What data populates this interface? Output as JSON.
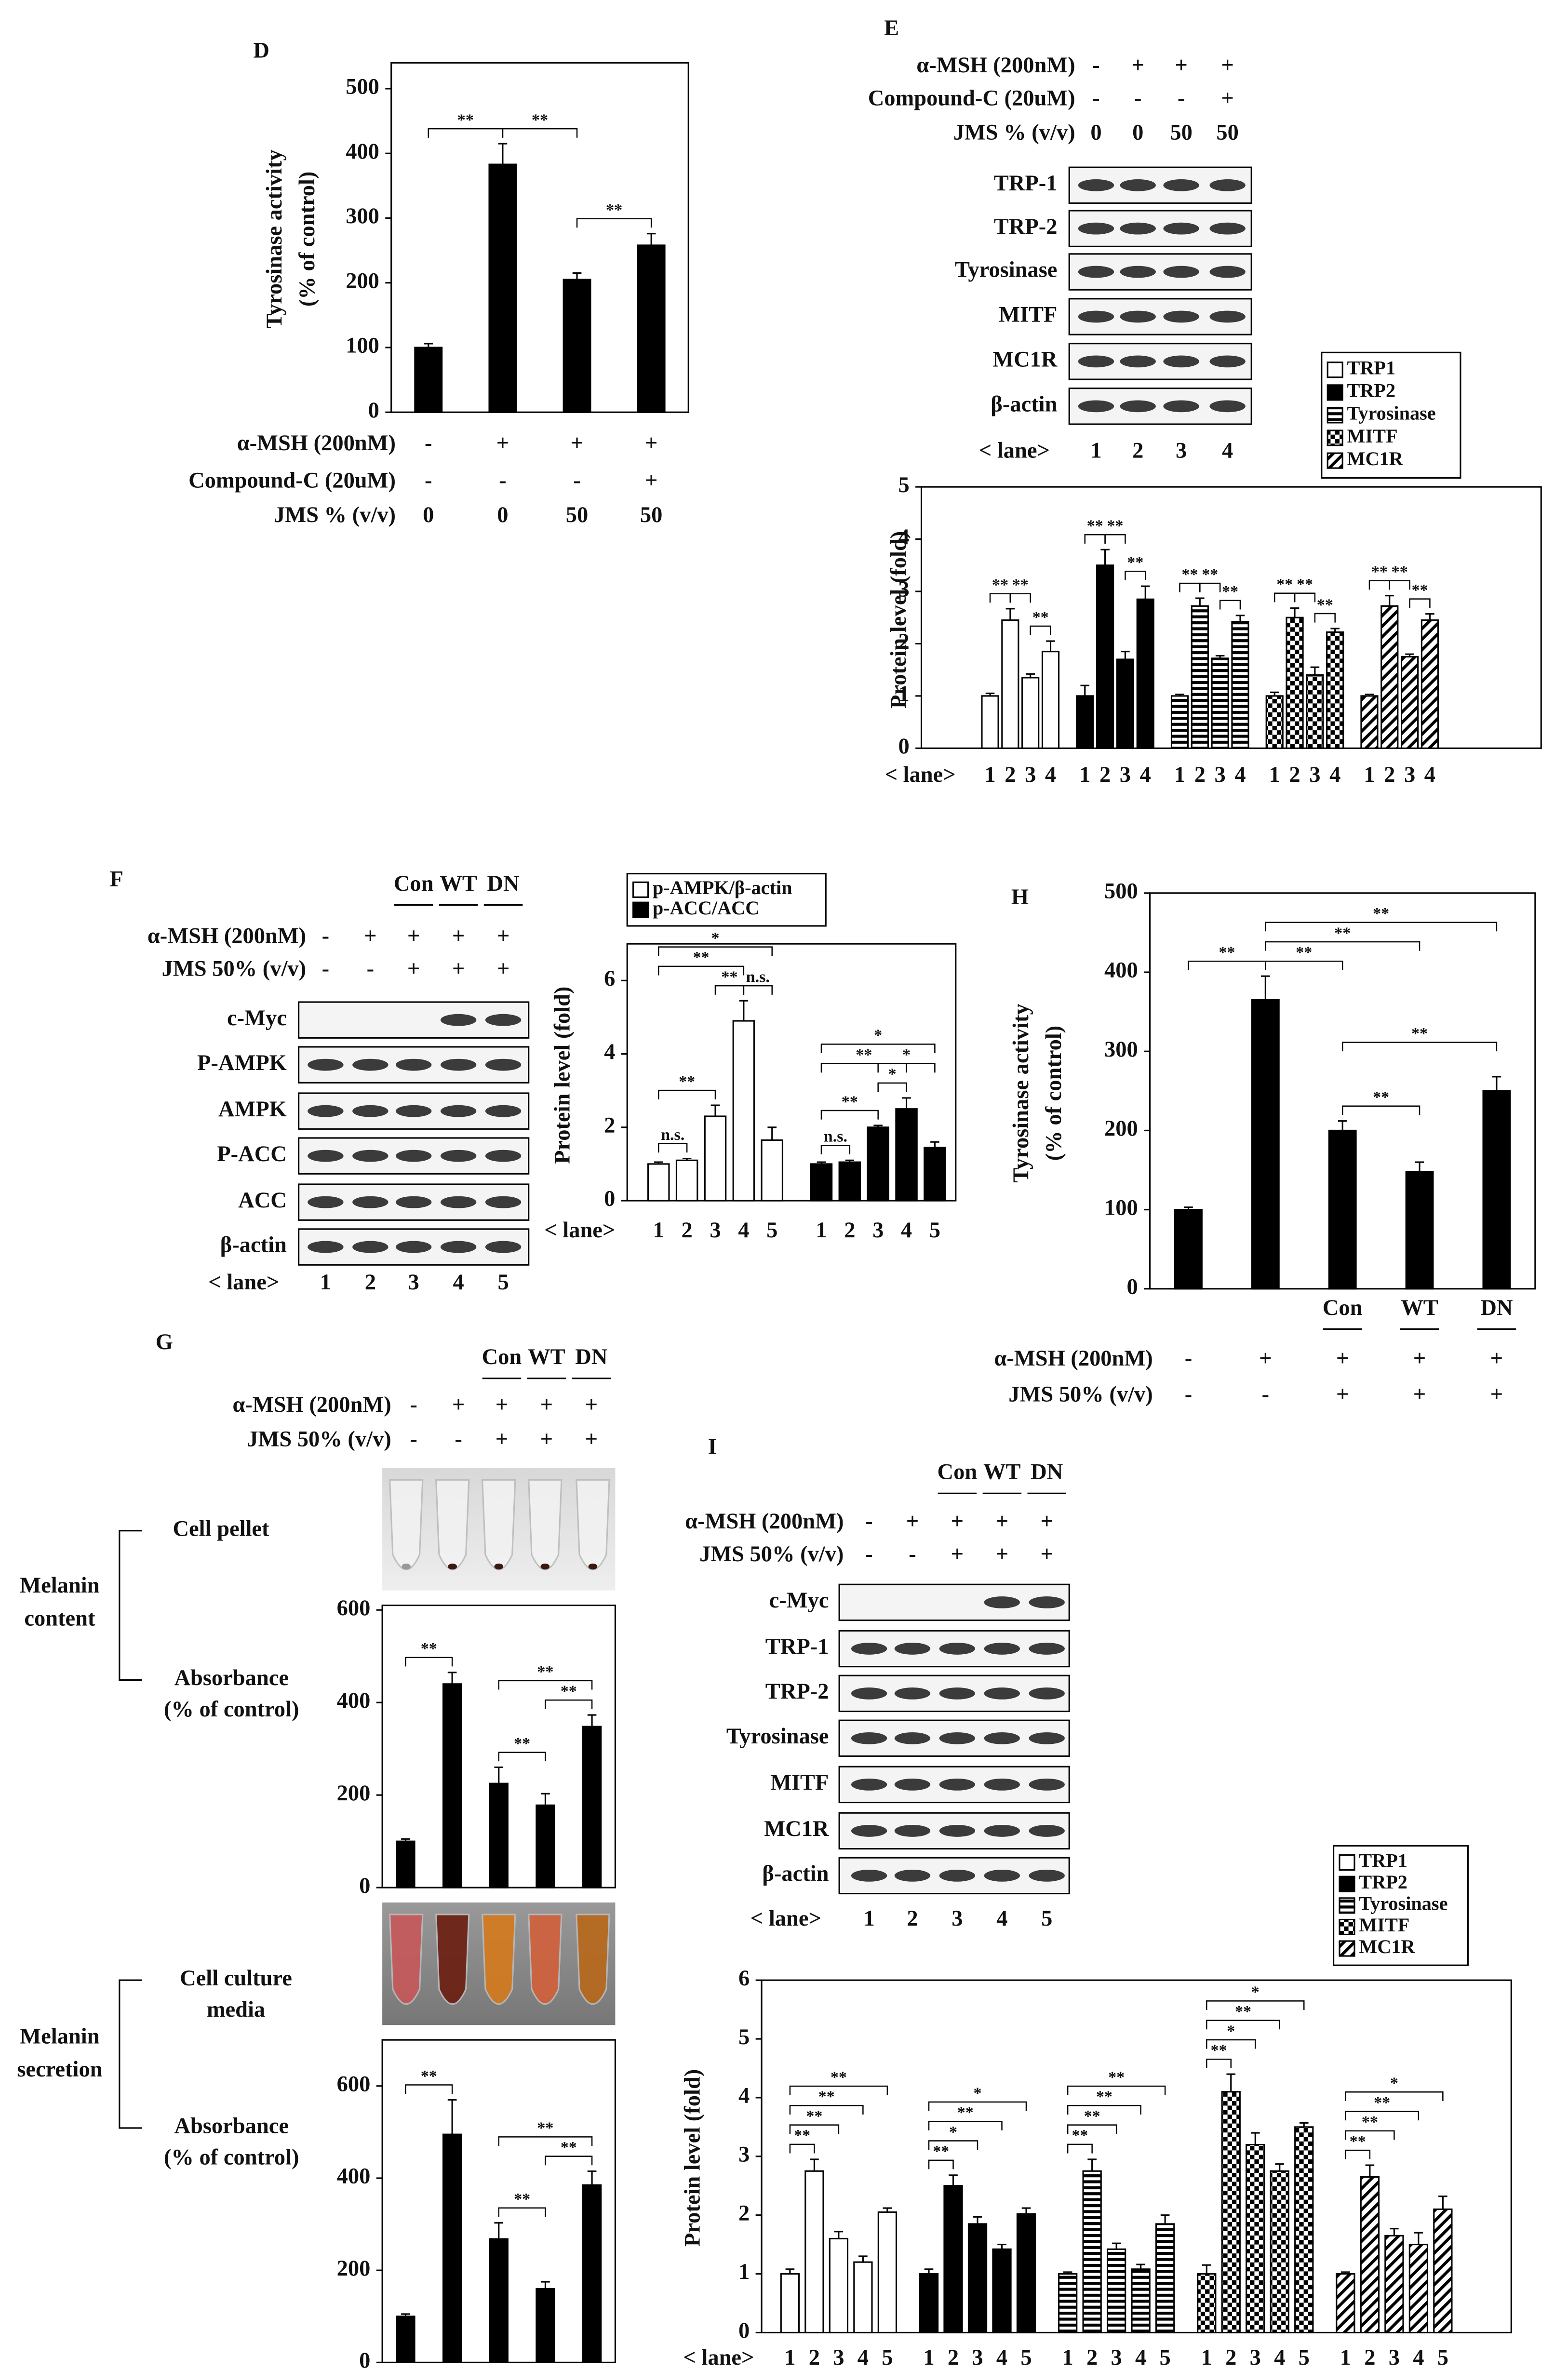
{
  "figure": {
    "panel_labels": [
      "D",
      "E",
      "F",
      "G",
      "H",
      "I"
    ],
    "blots": [
      {
        "conditions": [
          {
            "label": "α-MSH (200nM)",
            "values": [
              "-",
              "+",
              "+",
              "+"
            ]
          },
          {
            "label": "Compound-C (20uM)",
            "values": [
              "-",
              "-",
              "-",
              "+"
            ]
          },
          {
            "label": "JMS % (v/v)",
            "values": [
              "0",
              "0",
              "50",
              "50"
            ]
          }
        ],
        "rows": [
          "TRP-1",
          "TRP-2",
          "Tyrosinase",
          "MITF",
          "MC1R",
          "β-actin"
        ],
        "lane_label": "< lane>",
        "lanes": [
          "1",
          "2",
          "3",
          "4"
        ]
      },
      {
        "constructs": [
          "Con",
          "WT",
          "DN"
        ],
        "conditions": [
          {
            "label": "α-MSH (200nM)",
            "values": [
              "-",
              "+",
              "+",
              "+",
              "+"
            ]
          },
          {
            "label": "JMS 50% (v/v)",
            "values": [
              "-",
              "-",
              "+",
              "+",
              "+"
            ]
          }
        ],
        "rows": [
          "c-Myc",
          "P-AMPK",
          "AMPK",
          "P-ACC",
          "ACC",
          "β-actin"
        ],
        "lane_label": "< lane>",
        "lanes": [
          "1",
          "2",
          "3",
          "4",
          "5"
        ]
      },
      {
        "constructs": [
          "Con",
          "WT",
          "DN"
        ],
        "conditions": [
          {
            "label": "α-MSH (200nM)",
            "values": [
              "-",
              "+",
              "+",
              "+",
              "+"
            ]
          },
          {
            "label": "JMS 50% (v/v)",
            "values": [
              "-",
              "-",
              "+",
              "+",
              "+"
            ]
          }
        ],
        "rows": [
          "c-Myc",
          "TRP-1",
          "TRP-2",
          "Tyrosinase",
          "MITF",
          "MC1R",
          "β-actin"
        ],
        "lane_label": "< lane>",
        "lanes": [
          "1",
          "2",
          "3",
          "4",
          "5"
        ]
      }
    ],
    "melanin": {
      "constructs": [
        "Con",
        "WT",
        "DN"
      ],
      "conditions": [
        {
          "label": "α-MSH (200nM)",
          "values": [
            "-",
            "+",
            "+",
            "+",
            "+"
          ]
        },
        {
          "label": "JMS 50% (v/v)",
          "values": [
            "-",
            "-",
            "+",
            "+",
            "+"
          ]
        }
      ],
      "content_label": [
        "Melanin",
        "content"
      ],
      "pellet_label": "Cell pellet",
      "absorbance_label": [
        "Absorbance",
        "(% of control)"
      ],
      "secretion_label": [
        "Melanin",
        "secretion"
      ],
      "media_label": [
        "Cell culture",
        "media"
      ]
    }
  },
  "chart_data": [
    {
      "type": "bar",
      "y_label": [
        "Tyrosinase activity",
        "(% of control)"
      ],
      "values": [
        100,
        383,
        205,
        258
      ],
      "errors": [
        6,
        32,
        10,
        18
      ],
      "color": "#000000",
      "ylim": [
        0,
        540
      ],
      "yticks": [
        0,
        100,
        200,
        300,
        400,
        500
      ],
      "conditions": [
        {
          "label": "α-MSH (200nM)",
          "values": [
            "-",
            "+",
            "+",
            "+"
          ]
        },
        {
          "label": "Compound-C (20uM)",
          "values": [
            "-",
            "-",
            "-",
            "+"
          ]
        },
        {
          "label": "JMS % (v/v)",
          "values": [
            "0",
            "0",
            "50",
            "50"
          ]
        }
      ],
      "annotations": [
        "**",
        "**",
        "**"
      ]
    },
    {
      "type": "bar",
      "y_label": "Protein level (fold)",
      "lane_label": "< lane>",
      "categories": [
        "1",
        "2",
        "3",
        "4"
      ],
      "series": [
        {
          "name": "TRP1",
          "color": "#ffffff",
          "pattern": "none",
          "values": [
            1,
            2.45,
            1.35,
            1.85
          ],
          "errors": [
            0.05,
            0.22,
            0.07,
            0.2
          ]
        },
        {
          "name": "TRP2",
          "color": "#000000",
          "pattern": "solid",
          "values": [
            1,
            3.5,
            1.7,
            2.85
          ],
          "errors": [
            0.2,
            0.3,
            0.15,
            0.25
          ]
        },
        {
          "name": "Tyrosinase",
          "color": "#ffffff",
          "pattern": "horizontal",
          "values": [
            1,
            2.72,
            1.72,
            2.42
          ],
          "errors": [
            0.03,
            0.15,
            0.05,
            0.12
          ]
        },
        {
          "name": "MITF",
          "color": "#ffffff",
          "pattern": "checker",
          "values": [
            1,
            2.5,
            1.4,
            2.22
          ],
          "errors": [
            0.07,
            0.18,
            0.15,
            0.07
          ]
        },
        {
          "name": "MC1R",
          "color": "#ffffff",
          "pattern": "diagonal",
          "values": [
            1,
            2.72,
            1.75,
            2.45
          ],
          "errors": [
            0.03,
            0.2,
            0.05,
            0.12
          ]
        }
      ],
      "ylim": [
        0,
        5
      ],
      "yticks": [
        0,
        1,
        2,
        3,
        4,
        5
      ],
      "annotations": [
        "**",
        "**",
        "**",
        "**",
        "**",
        "**",
        "**",
        "**",
        "**",
        "**",
        "**",
        "**",
        "**",
        "**",
        "**"
      ]
    },
    {
      "type": "bar",
      "y_label": "Protein level (fold)",
      "lane_label": "< lane>",
      "categories": [
        "1",
        "2",
        "3",
        "4",
        "5"
      ],
      "series": [
        {
          "name": "p-AMPK/β-actin",
          "color": "#ffffff",
          "pattern": "none",
          "values": [
            1,
            1.1,
            2.3,
            4.9,
            1.65
          ],
          "errors": [
            0.05,
            0.05,
            0.3,
            0.55,
            0.35
          ]
        },
        {
          "name": "p-ACC/ACC",
          "color": "#000000",
          "pattern": "solid",
          "values": [
            1,
            1.05,
            2,
            2.5,
            1.45
          ],
          "errors": [
            0.05,
            0.05,
            0.05,
            0.3,
            0.15
          ]
        }
      ],
      "ylim": [
        0,
        7
      ],
      "yticks": [
        0,
        2,
        4,
        6
      ],
      "annotations": [
        "n.s.",
        "**",
        "**",
        "**",
        "*",
        "n.s.",
        "n.s.",
        "**",
        "**",
        "*",
        "*",
        "*"
      ]
    },
    {
      "type": "bar",
      "y_label": [
        "Tyrosinase activity",
        "(% of control)"
      ],
      "values": [
        100,
        365,
        200,
        148,
        250
      ],
      "errors": [
        3,
        30,
        12,
        12,
        18
      ],
      "color": "#000000",
      "ylim": [
        0,
        500
      ],
      "yticks": [
        0,
        100,
        200,
        300,
        400,
        500
      ],
      "constructs": [
        "Con",
        "WT",
        "DN"
      ],
      "conditions": [
        {
          "label": "α-MSH (200nM)",
          "values": [
            "-",
            "+",
            "+",
            "+",
            "+"
          ]
        },
        {
          "label": "JMS 50% (v/v)",
          "values": [
            "-",
            "-",
            "+",
            "+",
            "+"
          ]
        }
      ],
      "annotations": [
        "**",
        "**",
        "**",
        "**",
        "**",
        "**"
      ]
    },
    {
      "type": "bar",
      "values": [
        100,
        440,
        225,
        178,
        348
      ],
      "errors": [
        5,
        25,
        35,
        25,
        25
      ],
      "color": "#000000",
      "ylim": [
        0,
        610
      ],
      "yticks": [
        0,
        200,
        400,
        600
      ],
      "annotations": [
        "**",
        "**",
        "**",
        "**"
      ]
    },
    {
      "type": "bar",
      "values": [
        100,
        495,
        268,
        160,
        385
      ],
      "errors": [
        5,
        75,
        35,
        15,
        30
      ],
      "color": "#000000",
      "ylim": [
        0,
        700
      ],
      "yticks": [
        0,
        200,
        400,
        600
      ],
      "annotations": [
        "**",
        "**",
        "**",
        "**"
      ]
    },
    {
      "type": "bar",
      "y_label": "Protein level (fold)",
      "lane_label": "< lane>",
      "categories": [
        "1",
        "2",
        "3",
        "4",
        "5"
      ],
      "series": [
        {
          "name": "TRP1",
          "color": "#ffffff",
          "pattern": "none",
          "values": [
            1,
            2.75,
            1.6,
            1.2,
            2.05
          ],
          "errors": [
            0.08,
            0.2,
            0.12,
            0.1,
            0.07
          ]
        },
        {
          "name": "TRP2",
          "color": "#000000",
          "pattern": "solid",
          "values": [
            1,
            2.5,
            1.85,
            1.42,
            2.02
          ],
          "errors": [
            0.08,
            0.18,
            0.12,
            0.08,
            0.1
          ]
        },
        {
          "name": "Tyrosinase",
          "color": "#ffffff",
          "pattern": "horizontal",
          "values": [
            1,
            2.75,
            1.42,
            1.08,
            1.85
          ],
          "errors": [
            0.03,
            0.2,
            0.1,
            0.08,
            0.15
          ]
        },
        {
          "name": "MITF",
          "color": "#ffffff",
          "pattern": "checker",
          "values": [
            1,
            4.1,
            3.2,
            2.75,
            3.5
          ],
          "errors": [
            0.15,
            0.3,
            0.2,
            0.12,
            0.07
          ]
        },
        {
          "name": "MC1R",
          "color": "#ffffff",
          "pattern": "diagonal",
          "values": [
            1,
            2.65,
            1.65,
            1.5,
            2.1
          ],
          "errors": [
            0.03,
            0.2,
            0.12,
            0.2,
            0.22
          ]
        }
      ],
      "ylim": [
        0,
        6
      ],
      "yticks": [
        0,
        1,
        2,
        3,
        4,
        5,
        6
      ],
      "annotations": [
        "**",
        "**",
        "**",
        "**",
        "**",
        "*",
        "**",
        "*",
        "**",
        "**",
        "**",
        "**",
        "**",
        "*",
        "**",
        "*",
        "**",
        "**",
        "**",
        "*"
      ]
    }
  ]
}
